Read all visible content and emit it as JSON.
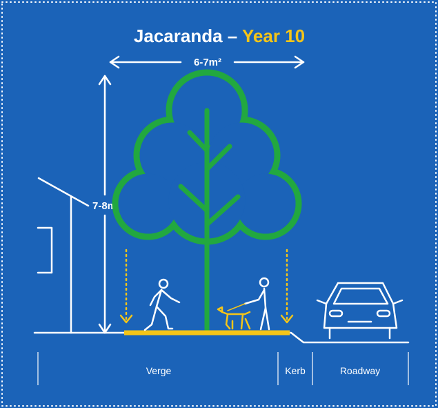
{
  "title": {
    "name": "Jacaranda –",
    "highlight": "Year 10"
  },
  "dimensions": {
    "width": "6-7m²",
    "height": "7-8m"
  },
  "zones": [
    "Verge",
    "Kerb",
    "Roadway"
  ]
}
